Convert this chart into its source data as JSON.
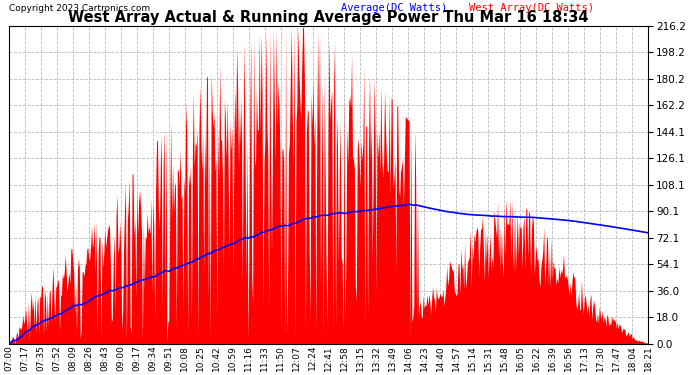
{
  "title": "West Array Actual & Running Average Power Thu Mar 16 18:34",
  "copyright": "Copyright 2023 Cartronics.com",
  "legend_avg": "Average(DC Watts)",
  "legend_west": "West Array(DC Watts)",
  "avg_color": "blue",
  "west_color": "red",
  "bg_color": "white",
  "grid_color": "#bbbbbb",
  "ylim": [
    0,
    216.2
  ],
  "yticks": [
    0.0,
    18.0,
    36.0,
    54.1,
    72.1,
    90.1,
    108.1,
    126.1,
    144.1,
    162.2,
    180.2,
    198.2,
    216.2
  ],
  "x_labels": [
    "07:00",
    "07:17",
    "07:35",
    "07:52",
    "08:09",
    "08:26",
    "08:43",
    "09:00",
    "09:17",
    "09:34",
    "09:51",
    "10:08",
    "10:25",
    "10:42",
    "10:59",
    "11:16",
    "11:33",
    "11:50",
    "12:07",
    "12:24",
    "12:41",
    "12:58",
    "13:15",
    "13:32",
    "13:49",
    "14:06",
    "14:23",
    "14:40",
    "14:57",
    "15:14",
    "15:31",
    "15:48",
    "16:05",
    "16:22",
    "16:39",
    "16:56",
    "17:13",
    "17:30",
    "17:47",
    "18:04",
    "18:21"
  ]
}
